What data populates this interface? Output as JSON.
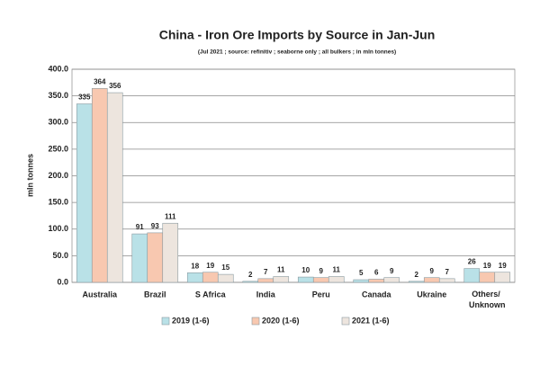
{
  "chart_data": {
    "type": "bar",
    "title": "China - Iron Ore Imports by Source in Jan-Jun",
    "subtitle": "(Jul 2021 ; source: refinitiv ; seaborne only ; all bulkers ; in mln tonnes)",
    "y_label": "mln tonnes",
    "categories": [
      "Australia",
      "Brazil",
      "S Africa",
      "India",
      "Peru",
      "Canada",
      "Ukraine",
      "Others/ Unknown"
    ],
    "series": [
      {
        "name": "2019 (1-6)",
        "color": "#b9e1e7",
        "values": [
          335,
          91,
          18,
          2,
          10,
          5,
          2,
          26
        ]
      },
      {
        "name": "2020 (1-6)",
        "color": "#f8c8b0",
        "values": [
          364,
          93,
          19,
          7,
          9,
          6,
          9,
          19
        ]
      },
      {
        "name": "2021 (1-6)",
        "color": "#ede5de",
        "values": [
          356,
          111,
          15,
          11,
          11,
          9,
          7,
          19
        ]
      }
    ],
    "ylim": [
      0,
      400
    ],
    "yticks": [
      {
        "value": 0,
        "label": "0.0"
      },
      {
        "value": 50,
        "label": "50.0"
      },
      {
        "value": 100,
        "label": "100.0"
      },
      {
        "value": 150,
        "label": "150.0"
      },
      {
        "value": 200,
        "label": "200.0"
      },
      {
        "value": 250,
        "label": "250.0"
      },
      {
        "value": 300,
        "label": "300.0"
      },
      {
        "value": 350,
        "label": "350.0"
      },
      {
        "value": 400,
        "label": "400.0"
      }
    ],
    "grid": true,
    "legend": "bottom"
  }
}
